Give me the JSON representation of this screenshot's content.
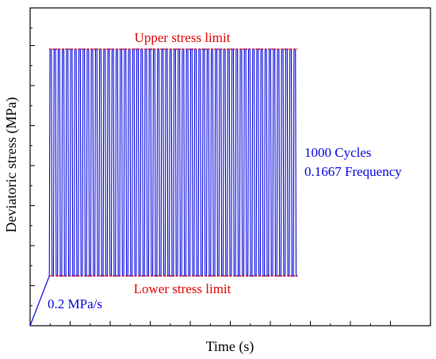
{
  "chart_data": {
    "type": "line",
    "title": "",
    "xlabel": "Time (s)",
    "ylabel": "Deviatoric stress (MPa)",
    "tick_labels_shown": false,
    "grid": false,
    "legend": "none",
    "loading_ramp": {
      "label": "0.2 MPa/s",
      "x": [
        0,
        0.048
      ],
      "y": [
        0,
        0.18
      ]
    },
    "cyclic_load": {
      "cycles_label": "1000 Cycles",
      "frequency_label": "0.1667 Frequency",
      "upper_limit": 1.0,
      "lower_limit": 0.18,
      "x_start": 0.048,
      "x_end": 0.668,
      "drawn_oscillations": 60
    },
    "annotations": {
      "upper": "Upper stress limit",
      "lower": "Lower stress limit"
    },
    "colors": {
      "signal": "#0000dd",
      "limits": "#e00000",
      "axis": "#000000"
    }
  }
}
